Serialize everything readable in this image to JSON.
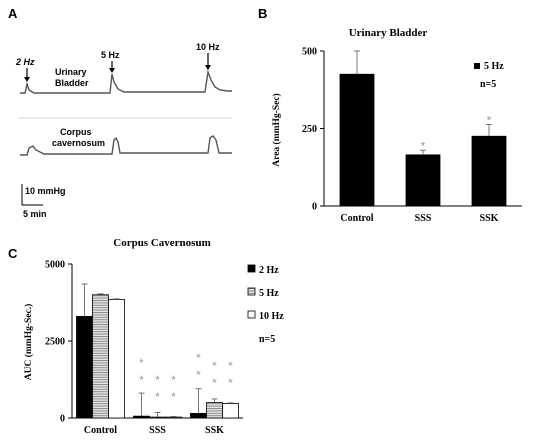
{
  "panels": {
    "a": "A",
    "b": "B",
    "c": "C"
  },
  "panel_a": {
    "traces": [
      {
        "label_lines": [
          "Urinary",
          "Bladder"
        ]
      },
      {
        "label_lines": [
          "Corpus",
          "cavernosum"
        ]
      }
    ],
    "stimuli": [
      "2 Hz",
      "5 Hz",
      "10 Hz"
    ],
    "scale_y": "10 mmHg",
    "scale_x": "5 min"
  },
  "chart_data": [
    {
      "panel": "B",
      "type": "bar",
      "title": "Urinary Bladder",
      "ylabel": "Area (mmHg-Sec)",
      "xlabel": "",
      "ylim": [
        0,
        500
      ],
      "yticks": [
        0,
        250,
        500
      ],
      "categories": [
        "Control",
        "SSS",
        "SSK"
      ],
      "series": [
        {
          "name": "5 Hz",
          "color": "#000000",
          "values": [
            425,
            165,
            225
          ],
          "errors": [
            75,
            15,
            38
          ]
        }
      ],
      "significance": [
        "",
        "*",
        "*"
      ],
      "legend_note": "n=5",
      "legend_position": "top-right"
    },
    {
      "panel": "C",
      "type": "bar",
      "title": "Corpus  Cavernosum",
      "ylabel": "AUC (mmHg-Sec.)",
      "xlabel": "",
      "ylim": [
        0,
        5000
      ],
      "yticks": [
        0,
        2500,
        5000
      ],
      "categories": [
        "Control",
        "SSS",
        "SSK"
      ],
      "series": [
        {
          "name": "2 Hz",
          "color": "#000000",
          "pattern": "solid",
          "values": [
            3300,
            60,
            150
          ],
          "errors": [
            1050,
            750,
            800
          ]
        },
        {
          "name": "5 Hz",
          "color": "#bbbbbb",
          "pattern": "stripes",
          "values": [
            4000,
            30,
            500
          ],
          "errors": [
            30,
            150,
            120
          ]
        },
        {
          "name": "10 Hz",
          "color": "#ffffff",
          "pattern": "open",
          "values": [
            3850,
            30,
            470
          ],
          "errors": [
            20,
            20,
            20
          ]
        }
      ],
      "significance": [
        [
          "",
          "",
          ""
        ],
        [
          "**",
          "**",
          "**"
        ],
        [
          "**",
          "**",
          "**"
        ]
      ],
      "legend_note": "n=5",
      "legend_position": "right"
    }
  ]
}
